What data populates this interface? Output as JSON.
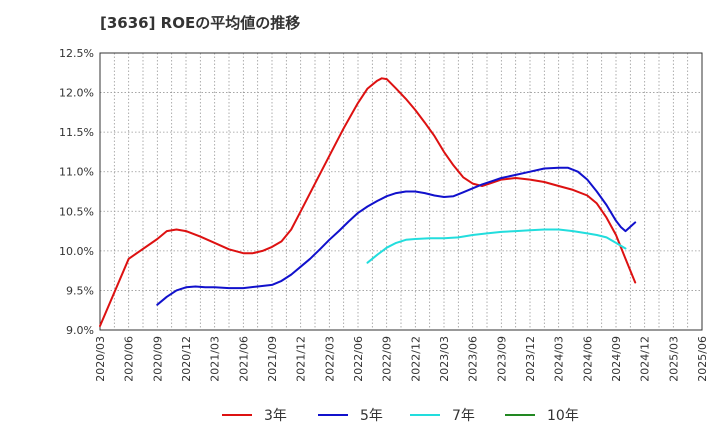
{
  "chart_data": {
    "type": "line",
    "title": "[3636]  ROEの平均値の推移",
    "xlabel": "",
    "ylabel": "",
    "ylim": [
      9.0,
      12.5
    ],
    "ytick_values": [
      9.0,
      9.5,
      10.0,
      10.5,
      11.0,
      11.5,
      12.0,
      12.5
    ],
    "ytick_labels": [
      "9.0%",
      "9.5%",
      "10.0%",
      "10.5%",
      "11.0%",
      "11.5%",
      "12.0%",
      "12.5%"
    ],
    "categories": [
      "2020/03",
      "2020/06",
      "2020/09",
      "2020/12",
      "2021/03",
      "2021/06",
      "2021/09",
      "2021/12",
      "2022/03",
      "2022/06",
      "2022/09",
      "2022/12",
      "2023/03",
      "2023/06",
      "2023/09",
      "2023/12",
      "2024/03",
      "2024/06",
      "2024/09",
      "2024/12",
      "2025/03",
      "2025/06"
    ],
    "grid": true,
    "legend_position": "bottom",
    "series": [
      {
        "name": "3年",
        "color": "#dd1111",
        "points": [
          [
            0,
            9.05
          ],
          [
            1,
            9.9
          ],
          [
            2,
            10.15
          ],
          [
            2.33,
            10.25
          ],
          [
            2.67,
            10.27
          ],
          [
            3,
            10.25
          ],
          [
            3.5,
            10.18
          ],
          [
            4,
            10.1
          ],
          [
            4.5,
            10.02
          ],
          [
            5,
            9.97
          ],
          [
            5.33,
            9.97
          ],
          [
            5.67,
            10.0
          ],
          [
            6,
            10.05
          ],
          [
            6.33,
            10.12
          ],
          [
            6.67,
            10.27
          ],
          [
            7,
            10.5
          ],
          [
            7.5,
            10.85
          ],
          [
            8,
            11.2
          ],
          [
            8.5,
            11.55
          ],
          [
            9,
            11.87
          ],
          [
            9.33,
            12.05
          ],
          [
            9.67,
            12.15
          ],
          [
            9.83,
            12.18
          ],
          [
            10,
            12.17
          ],
          [
            10.33,
            12.05
          ],
          [
            10.67,
            11.92
          ],
          [
            11,
            11.78
          ],
          [
            11.33,
            11.62
          ],
          [
            11.67,
            11.45
          ],
          [
            12,
            11.25
          ],
          [
            12.33,
            11.08
          ],
          [
            12.67,
            10.93
          ],
          [
            13,
            10.85
          ],
          [
            13.33,
            10.82
          ],
          [
            13.67,
            10.86
          ],
          [
            14,
            10.9
          ],
          [
            14.5,
            10.92
          ],
          [
            15,
            10.9
          ],
          [
            15.5,
            10.87
          ],
          [
            16,
            10.82
          ],
          [
            16.5,
            10.77
          ],
          [
            17,
            10.7
          ],
          [
            17.33,
            10.6
          ],
          [
            17.67,
            10.42
          ],
          [
            18,
            10.2
          ],
          [
            18.33,
            9.9
          ],
          [
            18.67,
            9.6
          ]
        ]
      },
      {
        "name": "5年",
        "color": "#1111cc",
        "points": [
          [
            2,
            9.32
          ],
          [
            2.33,
            9.42
          ],
          [
            2.67,
            9.5
          ],
          [
            3,
            9.54
          ],
          [
            3.33,
            9.55
          ],
          [
            3.67,
            9.54
          ],
          [
            4,
            9.54
          ],
          [
            4.5,
            9.53
          ],
          [
            5,
            9.53
          ],
          [
            5.5,
            9.55
          ],
          [
            6,
            9.57
          ],
          [
            6.33,
            9.62
          ],
          [
            6.67,
            9.7
          ],
          [
            7,
            9.8
          ],
          [
            7.33,
            9.9
          ],
          [
            7.67,
            10.02
          ],
          [
            8,
            10.14
          ],
          [
            8.33,
            10.25
          ],
          [
            8.67,
            10.37
          ],
          [
            9,
            10.48
          ],
          [
            9.33,
            10.56
          ],
          [
            9.67,
            10.63
          ],
          [
            10,
            10.69
          ],
          [
            10.33,
            10.73
          ],
          [
            10.67,
            10.75
          ],
          [
            11,
            10.75
          ],
          [
            11.33,
            10.73
          ],
          [
            11.67,
            10.7
          ],
          [
            12,
            10.68
          ],
          [
            12.33,
            10.69
          ],
          [
            12.67,
            10.74
          ],
          [
            13,
            10.79
          ],
          [
            13.33,
            10.84
          ],
          [
            13.67,
            10.88
          ],
          [
            14,
            10.92
          ],
          [
            14.5,
            10.96
          ],
          [
            15,
            11.0
          ],
          [
            15.5,
            11.04
          ],
          [
            16,
            11.05
          ],
          [
            16.33,
            11.05
          ],
          [
            16.67,
            11.0
          ],
          [
            17,
            10.9
          ],
          [
            17.33,
            10.75
          ],
          [
            17.67,
            10.58
          ],
          [
            18,
            10.38
          ],
          [
            18.17,
            10.3
          ],
          [
            18.33,
            10.25
          ],
          [
            18.67,
            10.36
          ]
        ]
      },
      {
        "name": "7年",
        "color": "#22dddd",
        "points": [
          [
            9.33,
            9.85
          ],
          [
            9.67,
            9.95
          ],
          [
            10,
            10.04
          ],
          [
            10.33,
            10.1
          ],
          [
            10.67,
            10.14
          ],
          [
            11,
            10.15
          ],
          [
            11.5,
            10.16
          ],
          [
            12,
            10.16
          ],
          [
            12.5,
            10.17
          ],
          [
            13,
            10.2
          ],
          [
            13.5,
            10.22
          ],
          [
            14,
            10.24
          ],
          [
            14.5,
            10.25
          ],
          [
            15,
            10.26
          ],
          [
            15.5,
            10.27
          ],
          [
            16,
            10.27
          ],
          [
            16.5,
            10.25
          ],
          [
            17,
            10.22
          ],
          [
            17.33,
            10.2
          ],
          [
            17.67,
            10.17
          ],
          [
            18,
            10.1
          ],
          [
            18.33,
            10.03
          ]
        ]
      },
      {
        "name": "10年",
        "color": "#228822",
        "points": []
      }
    ]
  }
}
